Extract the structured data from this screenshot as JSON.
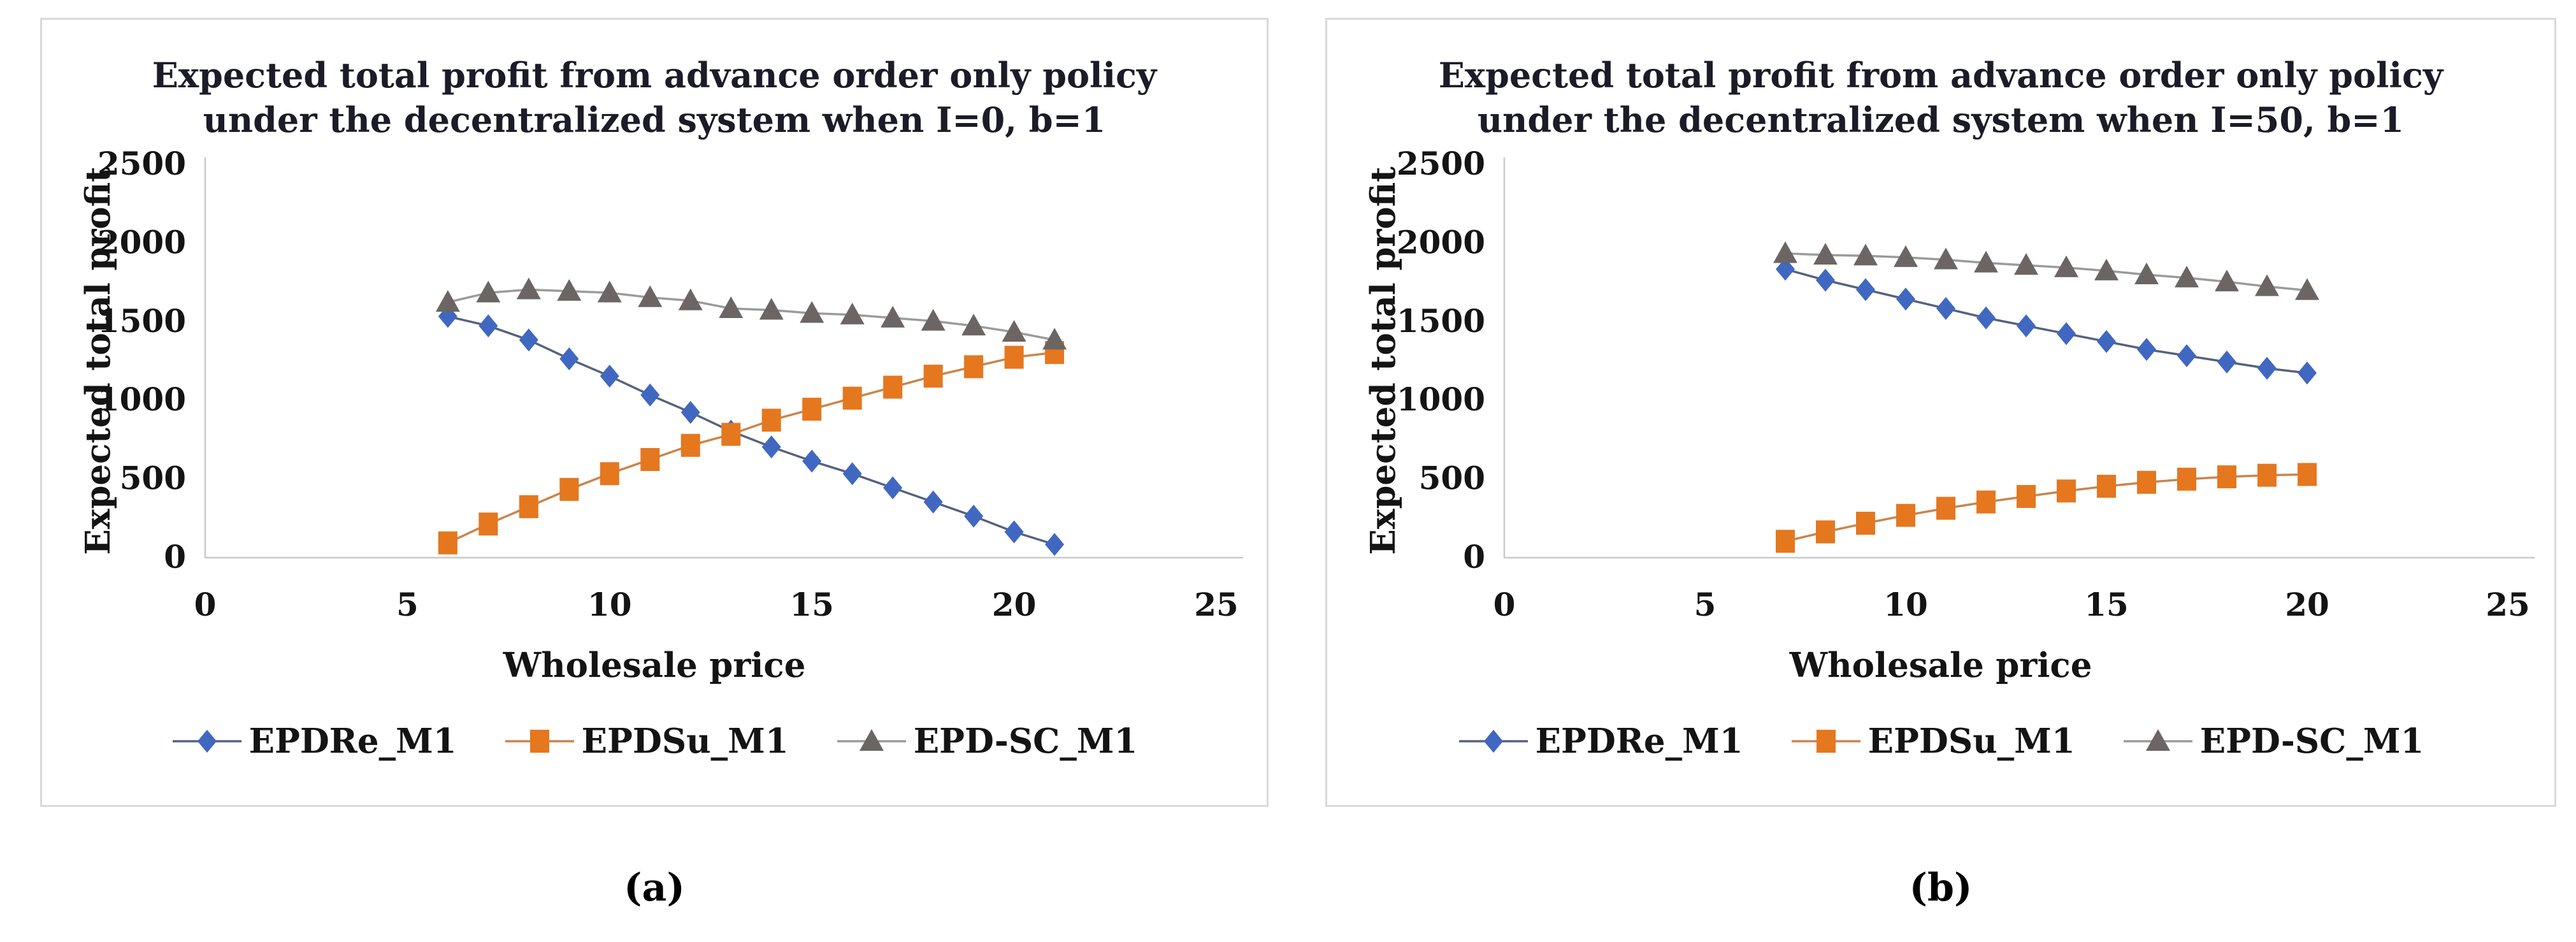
{
  "figure": {
    "captions": {
      "a": "(a)",
      "b": "(b)"
    }
  },
  "colors": {
    "series_blue": "#4068C0",
    "series_orange": "#E5771F",
    "series_gray": "#6B6663",
    "line_blue": "#56627E",
    "line_orange": "#C9854C",
    "line_gray": "#9B9B9B",
    "axis_line": "#c9c9c9",
    "tick_text": "#141414",
    "title_text": "#1c1c28"
  },
  "chart_data": [
    {
      "type": "line",
      "title": "Expected total profit from advance order only policy under the decentralized system when I=0, b=1",
      "title_lines": [
        "Expected total profit from advance order only policy",
        "under the decentralized system when I=0, b=1"
      ],
      "xlabel": "Wholesale price",
      "ylabel": "Expected total profit",
      "xlim": [
        0,
        25
      ],
      "ylim": [
        0,
        2500
      ],
      "x_ticks": [
        0,
        5,
        10,
        15,
        20,
        25
      ],
      "y_ticks": [
        0,
        500,
        1000,
        1500,
        2000,
        2500
      ],
      "grid": false,
      "legend_position": "bottom",
      "x": [
        6,
        7,
        8,
        9,
        10,
        11,
        12,
        13,
        14,
        15,
        16,
        17,
        18,
        19,
        20,
        21
      ],
      "series": [
        {
          "name": "EPDRe_M1",
          "marker": "diamond",
          "color": "#4068C0",
          "line_color": "#56627E",
          "values": [
            1530,
            1470,
            1380,
            1260,
            1150,
            1030,
            920,
            800,
            700,
            610,
            530,
            440,
            350,
            260,
            160,
            80
          ]
        },
        {
          "name": "EPDSu_M1",
          "marker": "square",
          "color": "#E5771F",
          "line_color": "#C9854C",
          "values": [
            90,
            210,
            320,
            430,
            530,
            620,
            710,
            780,
            870,
            940,
            1010,
            1080,
            1150,
            1210,
            1270,
            1300
          ]
        },
        {
          "name": "EPD-SC_M1",
          "marker": "triangle",
          "color": "#6B6663",
          "line_color": "#9B9B9B",
          "values": [
            1620,
            1680,
            1700,
            1690,
            1680,
            1650,
            1630,
            1580,
            1570,
            1550,
            1540,
            1520,
            1500,
            1470,
            1430,
            1380
          ]
        }
      ]
    },
    {
      "type": "line",
      "title": "Expected total profit from advance order only policy under the decentralized system when I=50, b=1",
      "title_lines": [
        "Expected total profit from advance order only policy",
        "under the decentralized system when I=50, b=1"
      ],
      "xlabel": "Wholesale price",
      "ylabel": "Expected total profit",
      "xlim": [
        0,
        25
      ],
      "ylim": [
        0,
        2500
      ],
      "x_ticks": [
        0,
        5,
        10,
        15,
        20,
        25
      ],
      "y_ticks": [
        0,
        500,
        1000,
        1500,
        2000,
        2500
      ],
      "grid": false,
      "legend_position": "bottom",
      "x": [
        7,
        8,
        9,
        10,
        11,
        12,
        13,
        14,
        15,
        16,
        17,
        18,
        19,
        20
      ],
      "series": [
        {
          "name": "EPDRe_M1",
          "marker": "diamond",
          "color": "#4068C0",
          "line_color": "#56627E",
          "values": [
            1830,
            1760,
            1700,
            1640,
            1580,
            1520,
            1470,
            1420,
            1370,
            1320,
            1280,
            1240,
            1200,
            1170
          ]
        },
        {
          "name": "EPDSu_M1",
          "marker": "square",
          "color": "#E5771F",
          "line_color": "#C9854C",
          "values": [
            100,
            160,
            215,
            265,
            310,
            350,
            385,
            420,
            450,
            475,
            495,
            510,
            520,
            525
          ]
        },
        {
          "name": "EPD-SC_M1",
          "marker": "triangle",
          "color": "#6B6663",
          "line_color": "#9B9B9B",
          "values": [
            1930,
            1920,
            1915,
            1905,
            1890,
            1870,
            1855,
            1840,
            1820,
            1795,
            1775,
            1750,
            1720,
            1695
          ]
        }
      ]
    }
  ]
}
